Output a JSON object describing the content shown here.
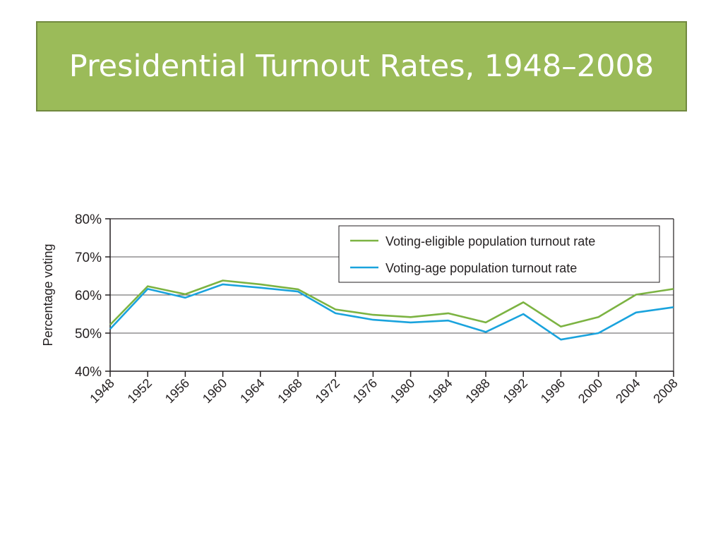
{
  "slide": {
    "title": "Presidential Turnout Rates, 1948–2008",
    "title_bg_color": "#9bbb59"
  },
  "chart_data": {
    "type": "line",
    "title": "",
    "xlabel": "",
    "ylabel": "Percentage voting",
    "x": [
      "1948",
      "1952",
      "1956",
      "1960",
      "1964",
      "1968",
      "1972",
      "1976",
      "1980",
      "1984",
      "1988",
      "1992",
      "1996",
      "2000",
      "2004",
      "2008"
    ],
    "ylim": [
      40,
      80
    ],
    "yticks": [
      "40%",
      "50%",
      "60%",
      "70%",
      "80%"
    ],
    "grid": "horizontal",
    "legend_position": "top-right",
    "series": [
      {
        "name": "Voting-eligible population turnout rate",
        "color": "#7cb342",
        "values": [
          52.2,
          62.3,
          60.2,
          63.8,
          62.8,
          61.5,
          56.2,
          54.8,
          54.2,
          55.2,
          52.8,
          58.1,
          51.7,
          54.2,
          60.1,
          61.6
        ]
      },
      {
        "name": "Voting-age population turnout rate",
        "color": "#1aa3dd",
        "values": [
          51.1,
          61.6,
          59.3,
          62.8,
          61.9,
          60.9,
          55.2,
          53.5,
          52.8,
          53.3,
          50.3,
          55.0,
          48.3,
          50.0,
          55.4,
          56.8
        ]
      }
    ]
  }
}
